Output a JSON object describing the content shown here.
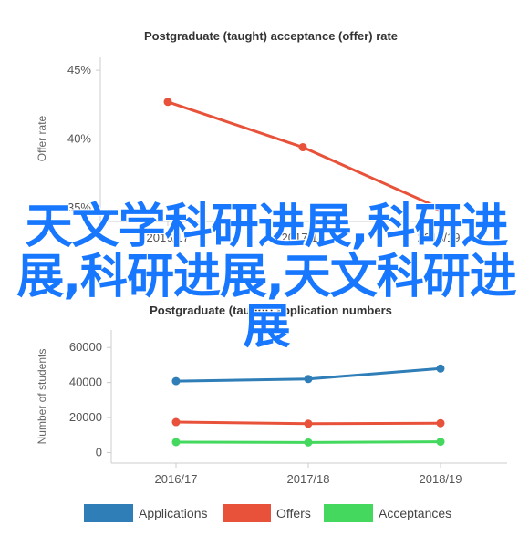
{
  "overlay_text": "天文学科研进展,科研进展,科研进展,天文科研进展",
  "colors": {
    "rate_line": "#e8523a",
    "applications": "#2f7eb8",
    "offers": "#e8523a",
    "acceptances": "#44d95e",
    "axis": "#cccccc",
    "grid": "#e6e6e6"
  },
  "chart_data": [
    {
      "type": "line",
      "title": "Postgraduate (taught) acceptance (offer) rate",
      "ylabel": "Offer rate",
      "xlabel": "",
      "categories": [
        "2016/17",
        "2017/18",
        "2018/19"
      ],
      "y_ticks": [
        "35%",
        "40%",
        "45%"
      ],
      "ylim": [
        34,
        46
      ],
      "grid": false,
      "series": [
        {
          "values": [
            42.7,
            39.4,
            35.0
          ],
          "color": "#e8523a"
        }
      ]
    },
    {
      "type": "line",
      "title": "Postgraduate (taught) application numbers",
      "ylabel": "Number of students",
      "xlabel": "",
      "categories": [
        "2016/17",
        "2017/18",
        "2018/19"
      ],
      "y_ticks": [
        "0",
        "20000",
        "40000",
        "60000"
      ],
      "ylim": [
        -6000,
        70000
      ],
      "grid": false,
      "legend_position": "bottom",
      "series": [
        {
          "name": "Applications",
          "values": [
            40800,
            42000,
            48000
          ],
          "color": "#2f7eb8"
        },
        {
          "name": "Offers",
          "values": [
            17400,
            16500,
            16800
          ],
          "color": "#e8523a"
        },
        {
          "name": "Acceptances",
          "values": [
            6000,
            5800,
            6200
          ],
          "color": "#44d95e"
        }
      ]
    }
  ]
}
